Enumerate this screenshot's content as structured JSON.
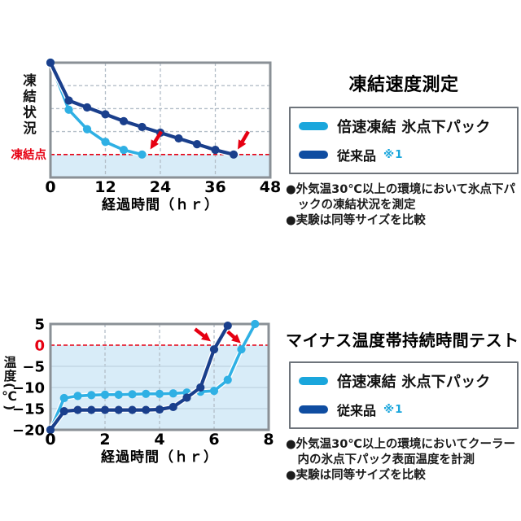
{
  "colors": {
    "legend_light": "#1aa6dc",
    "legend_dark": "#0f4da1",
    "light_blue": "#2fb0e4",
    "dark_blue": "#1a3f8c",
    "red": "#e60012",
    "shade": "#d8ecf8",
    "grid": "#b3bec8",
    "plot_border": "#8a9096"
  },
  "sections": [
    {
      "legend": [
        {
          "label": "倍速凍結 氷点下パック",
          "note": ""
        },
        {
          "label": "従来品",
          "note": "※1"
        }
      ],
      "notes": [
        "●外気温30℃以上の環境において氷点下パックの凍結状況を測定",
        "●実験は同等サイズを比較"
      ]
    },
    {
      "legend": [
        {
          "label": "倍速凍結 氷点下パック",
          "note": ""
        },
        {
          "label": "従来品",
          "note": "※1"
        }
      ],
      "notes": [
        "●外気温30℃以上の環境においてクーラー内の氷点下パック表面温度を計測",
        "●実験は同等サイズを比較"
      ]
    }
  ],
  "chart_data": [
    {
      "type": "line",
      "title": "凍結速度測定",
      "xlabel": "経過時間（ｈｒ）",
      "ylabel": "凍結状況",
      "xlim": [
        0,
        48
      ],
      "ylim": [
        0,
        100
      ],
      "x_ticks": [
        {
          "v": 0,
          "label": "0"
        },
        {
          "v": 12,
          "label": "12"
        },
        {
          "v": 24,
          "label": "24"
        },
        {
          "v": 36,
          "label": "36"
        },
        {
          "v": 48,
          "label": "48"
        }
      ],
      "y_ticks": [],
      "x_grid": [
        12,
        24,
        36
      ],
      "y_grid": [
        80,
        60,
        40
      ],
      "y_grid_style": "dashed",
      "red_line": {
        "value": 20,
        "label": "凍結点"
      },
      "shade_below": 20,
      "grid": true,
      "legend_position": "right-outside",
      "series": [
        {
          "name": "倍速凍結 氷点下パック",
          "color": "#2fb0e4",
          "x": [
            0,
            4,
            8,
            12,
            16,
            20
          ],
          "y": [
            100,
            59,
            42,
            31,
            24,
            20
          ]
        },
        {
          "name": "従来品 ※1",
          "color": "#1a3f8c",
          "x": [
            0,
            4,
            8,
            12,
            16,
            20,
            24,
            28,
            32,
            36,
            40
          ],
          "y": [
            100,
            67,
            61,
            55,
            49,
            44,
            39,
            34,
            29,
            24,
            20
          ]
        }
      ],
      "arrows": [
        {
          "from": [
            24.2,
            40
          ],
          "to": [
            21.8,
            24.5
          ]
        },
        {
          "from": [
            43.2,
            40
          ],
          "to": [
            40.9,
            24.5
          ]
        }
      ]
    },
    {
      "type": "line",
      "title": "マイナス温度帯持続時間テスト",
      "xlabel": "経過時間（ｈｒ）",
      "ylabel": "温度(℃)",
      "xlim": [
        0,
        8
      ],
      "ylim": [
        -20,
        5
      ],
      "x_ticks": [
        {
          "v": 0,
          "label": "0"
        },
        {
          "v": 2,
          "label": "2"
        },
        {
          "v": 4,
          "label": "4"
        },
        {
          "v": 6,
          "label": "6"
        },
        {
          "v": 8,
          "label": "8"
        }
      ],
      "y_ticks": [
        {
          "v": 5,
          "label": "5"
        },
        {
          "v": 0,
          "label": "0",
          "color": "#e60012"
        },
        {
          "v": -5,
          "label": "−5"
        },
        {
          "v": -10,
          "label": "−10"
        },
        {
          "v": -15,
          "label": "−15"
        },
        {
          "v": -20,
          "label": "−20"
        }
      ],
      "x_grid": [
        2,
        4,
        6
      ],
      "y_grid": [
        -5,
        -10,
        -15
      ],
      "y_grid_style": "solid",
      "red_line": {
        "value": 0,
        "label": ""
      },
      "shade_below": 0,
      "grid": true,
      "legend_position": "right-outside",
      "series": [
        {
          "name": "倍速凍結 氷点下パック",
          "color": "#2fb0e4",
          "x": [
            0,
            0.5,
            1,
            1.5,
            2,
            2.5,
            3,
            3.5,
            4,
            4.5,
            5,
            5.5,
            6,
            6.5,
            7,
            7.5
          ],
          "y": [
            -20,
            -12.5,
            -12,
            -11.8,
            -11.7,
            -11.7,
            -11.6,
            -11.5,
            -11.5,
            -11.4,
            -11.2,
            -11,
            -10.8,
            -8.2,
            -1,
            5
          ]
        },
        {
          "name": "従来品 ※1",
          "color": "#1a3f8c",
          "x": [
            0,
            0.5,
            1,
            1.5,
            2,
            2.5,
            3,
            3.5,
            4,
            4.5,
            5,
            5.5,
            6,
            6.5
          ],
          "y": [
            -20,
            -15.6,
            -15.3,
            -15.3,
            -15.3,
            -15.3,
            -15.3,
            -15.3,
            -15.2,
            -14.6,
            -12.4,
            -10,
            -1,
            4.6
          ]
        }
      ],
      "arrows": [
        {
          "from": [
            5.3,
            3.8
          ],
          "to": [
            5.88,
            0.9
          ]
        },
        {
          "from": [
            6.5,
            3.2
          ],
          "to": [
            6.98,
            0.45
          ]
        }
      ]
    }
  ]
}
